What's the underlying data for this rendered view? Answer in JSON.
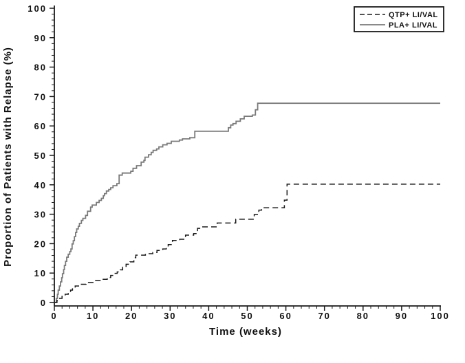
{
  "figure": {
    "kind": "kaplan-meier-relapse-plot",
    "background_color": "#ffffff",
    "axis_color": "#1a1a1a"
  },
  "chart_data": {
    "type": "line",
    "title": "",
    "xlabel": "Time (weeks)",
    "ylabel": "Proportion of Patients with Relapse (%)",
    "xlim": [
      0,
      100
    ],
    "ylim": [
      0,
      100
    ],
    "x_major_ticks": [
      0,
      10,
      20,
      30,
      40,
      50,
      60,
      70,
      80,
      90,
      100
    ],
    "y_major_ticks": [
      0,
      10,
      20,
      30,
      40,
      50,
      60,
      70,
      80,
      90,
      100
    ],
    "x_minor_step": 2,
    "y_minor_step": 2,
    "grid": "off",
    "legend_position": "top-right",
    "interpolation": "step-after",
    "series": [
      {
        "name": "QTP+ LI/VAL",
        "style": "dashed",
        "color": "#1a1a1a",
        "points": [
          [
            0,
            0
          ],
          [
            0.7,
            0.7
          ],
          [
            1.2,
            1.4
          ],
          [
            2,
            2.1
          ],
          [
            2.8,
            2.8
          ],
          [
            3.6,
            3.5
          ],
          [
            4.2,
            4.2
          ],
          [
            4.7,
            5.0
          ],
          [
            5.4,
            5.6
          ],
          [
            6.6,
            6.2
          ],
          [
            8.2,
            6.8
          ],
          [
            10.3,
            7.4
          ],
          [
            12.4,
            7.9
          ],
          [
            13.7,
            8.5
          ],
          [
            14.6,
            9.2
          ],
          [
            15.3,
            9.9
          ],
          [
            16.3,
            10.4
          ],
          [
            17.1,
            11.1
          ],
          [
            17.7,
            12.0
          ],
          [
            18.6,
            13.0
          ],
          [
            19.6,
            13.8
          ],
          [
            20.6,
            15.2
          ],
          [
            21.1,
            16.1
          ],
          [
            23.6,
            16.6
          ],
          [
            25.5,
            17.0
          ],
          [
            26.6,
            17.7
          ],
          [
            28.1,
            18.2
          ],
          [
            29.0,
            19.0
          ],
          [
            29.5,
            19.7
          ],
          [
            30.6,
            21.1
          ],
          [
            32.5,
            21.5
          ],
          [
            34.0,
            22.9
          ],
          [
            36.1,
            23.4
          ],
          [
            37.1,
            25.2
          ],
          [
            38.3,
            25.7
          ],
          [
            42.2,
            27.0
          ],
          [
            47.0,
            28.3
          ],
          [
            51.8,
            29.9
          ],
          [
            53.0,
            31.4
          ],
          [
            53.7,
            32.2
          ],
          [
            59.6,
            34.8
          ],
          [
            60.3,
            40.2
          ],
          [
            100,
            40.2
          ]
        ]
      },
      {
        "name": "PLA+ LI/VAL",
        "style": "solid",
        "color": "#7a7a7a",
        "points": [
          [
            0,
            0
          ],
          [
            0.5,
            1.4
          ],
          [
            0.8,
            2.8
          ],
          [
            1.0,
            4.2
          ],
          [
            1.3,
            5.6
          ],
          [
            1.6,
            7.0
          ],
          [
            1.9,
            8.4
          ],
          [
            2.1,
            9.8
          ],
          [
            2.4,
            11.2
          ],
          [
            2.6,
            12.6
          ],
          [
            2.9,
            14.0
          ],
          [
            3.2,
            15.4
          ],
          [
            3.6,
            16.4
          ],
          [
            4.0,
            17.3
          ],
          [
            4.3,
            18.2
          ],
          [
            4.6,
            19.9
          ],
          [
            4.9,
            21.0
          ],
          [
            5.2,
            22.4
          ],
          [
            5.5,
            23.8
          ],
          [
            5.8,
            25.0
          ],
          [
            6.2,
            25.9
          ],
          [
            6.5,
            26.9
          ],
          [
            7.0,
            27.9
          ],
          [
            7.4,
            28.6
          ],
          [
            8.1,
            29.6
          ],
          [
            8.6,
            31.0
          ],
          [
            9.4,
            32.4
          ],
          [
            9.8,
            33.1
          ],
          [
            10.9,
            34.0
          ],
          [
            11.6,
            34.7
          ],
          [
            12.2,
            35.4
          ],
          [
            12.7,
            36.3
          ],
          [
            13.0,
            37.0
          ],
          [
            13.5,
            37.9
          ],
          [
            14.1,
            38.4
          ],
          [
            14.6,
            39.0
          ],
          [
            15.2,
            39.7
          ],
          [
            16.2,
            40.4
          ],
          [
            16.8,
            43.3
          ],
          [
            17.6,
            44.0
          ],
          [
            19.8,
            44.6
          ],
          [
            20.4,
            45.6
          ],
          [
            21.3,
            46.5
          ],
          [
            22.5,
            47.7
          ],
          [
            23.2,
            48.3
          ],
          [
            23.5,
            49.4
          ],
          [
            24.4,
            50.2
          ],
          [
            25.1,
            51.0
          ],
          [
            25.6,
            51.7
          ],
          [
            26.5,
            52.2
          ],
          [
            27.1,
            52.9
          ],
          [
            28.1,
            53.6
          ],
          [
            29.2,
            54.1
          ],
          [
            30.3,
            54.8
          ],
          [
            32.4,
            55.2
          ],
          [
            33.2,
            55.6
          ],
          [
            35.1,
            56.0
          ],
          [
            36.4,
            58.2
          ],
          [
            45.1,
            59.4
          ],
          [
            45.7,
            60.3
          ],
          [
            46.3,
            60.8
          ],
          [
            47.1,
            61.6
          ],
          [
            48.2,
            62.4
          ],
          [
            49.2,
            63.3
          ],
          [
            51.3,
            63.7
          ],
          [
            52.1,
            65.5
          ],
          [
            52.7,
            67.7
          ],
          [
            100,
            67.7
          ]
        ]
      }
    ]
  }
}
